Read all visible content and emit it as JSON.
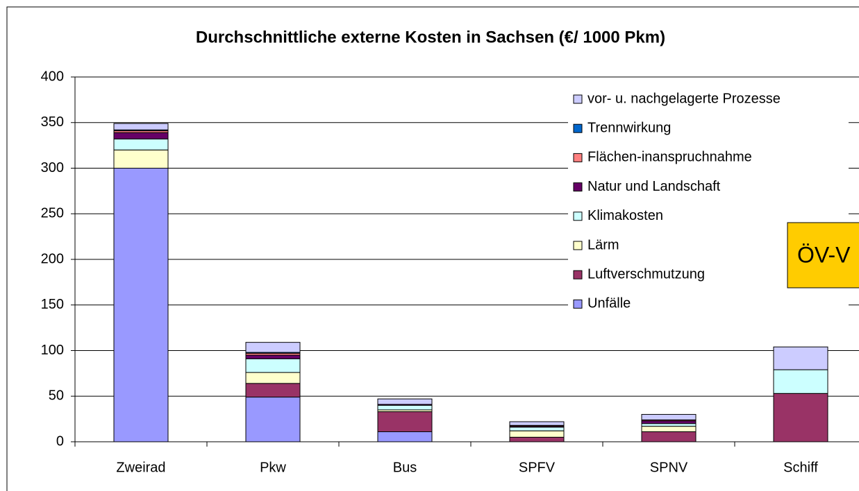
{
  "chart_data": {
    "type": "stacked_bar",
    "title": "Durchschnittliche externe Kosten in Sachsen (€/ 1000 Pkm)",
    "annotation": "ÖV-V",
    "categories": [
      "Zweirad",
      "Pkw",
      "Bus",
      "SPFV",
      "SPNV",
      "Schiff"
    ],
    "series": [
      {
        "name": "Unfälle",
        "color": "#9999ff",
        "values": [
          300,
          49,
          11,
          0,
          0,
          0
        ]
      },
      {
        "name": "Luftverschmutzung",
        "color": "#993366",
        "values": [
          0,
          15,
          22,
          5,
          11,
          53
        ]
      },
      {
        "name": "Lärm",
        "color": "#ffffcc",
        "values": [
          20,
          12,
          2,
          7,
          6,
          0
        ]
      },
      {
        "name": "Klimakosten",
        "color": "#ccffff",
        "values": [
          12,
          15,
          5,
          4,
          3,
          26
        ]
      },
      {
        "name": "Natur und Landschaft",
        "color": "#660066",
        "values": [
          7,
          4,
          1,
          1,
          3,
          0
        ]
      },
      {
        "name": "Flächen-inanspruchnahme",
        "color": "#ff8080",
        "values": [
          2,
          2,
          0,
          1,
          1,
          0
        ]
      },
      {
        "name": "Trennwirkung",
        "color": "#0066cc",
        "values": [
          1,
          1,
          0,
          0,
          0,
          0
        ]
      },
      {
        "name": "vor- u. nachgelagerte Prozesse",
        "color": "#ccccff",
        "values": [
          7,
          11,
          6,
          4,
          6,
          25
        ]
      }
    ],
    "ylim": [
      0,
      400
    ],
    "yticks": [
      0,
      50,
      100,
      150,
      200,
      250,
      300,
      350,
      400
    ],
    "grid": true,
    "legend": "right"
  }
}
